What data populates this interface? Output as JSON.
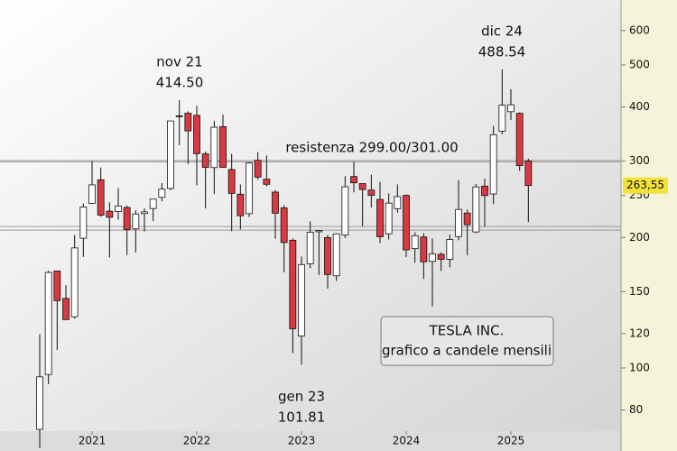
{
  "chart_data": {
    "type": "candlestick",
    "categories": [
      null,
      null,
      null,
      null,
      null,
      null,
      "2021",
      null,
      null,
      null,
      null,
      null,
      null,
      null,
      null,
      null,
      null,
      null,
      "2022",
      null,
      null,
      null,
      null,
      null,
      null,
      null,
      null,
      null,
      null,
      null,
      "2023",
      null,
      null,
      null,
      null,
      null,
      null,
      null,
      null,
      null,
      null,
      null,
      "2024",
      null,
      null,
      null,
      null,
      null,
      null,
      null,
      null,
      null,
      null,
      null,
      "2025",
      null,
      null
    ],
    "open": [
      72.2,
      96.6,
      167.4,
      144.7,
      131.3,
      199.2,
      239.8,
      271.7,
      230.0,
      229.5,
      234.6,
      209.3,
      227.0,
      233.3,
      247.5,
      259.5,
      381.7,
      386.9,
      382.6,
      311.7,
      289.9,
      360.4,
      286.9,
      251.7,
      227.0,
      301.3,
      272.6,
      254.5,
      234.1,
      197.1,
      118.5,
      173.9,
      206.2,
      199.9,
      163.2,
      202.6,
      276.5,
      266.3,
      257.3,
      244.8,
      204.0,
      233.1,
      250.1,
      188.5,
      200.5,
      176.2,
      182.9,
      178.1,
      201.0,
      227.7,
      206.0,
      262.7,
      252.0,
      351.8,
      390.1,
      386.7,
      300.3
    ],
    "high": [
      119.7,
      167.5,
      167.5,
      155.3,
      202.6,
      239.6,
      300.1,
      290.1,
      241.1,
      260.3,
      237.0,
      231.0,
      233.3,
      245.4,
      266.9,
      371.7,
      414.5,
      390.9,
      402.7,
      315.7,
      371.6,
      384.3,
      311.9,
      265.0,
      298.3,
      314.7,
      309.1,
      257.5,
      237.4,
      198.9,
      180.7,
      217.7,
      207.8,
      202.7,
      204.5,
      277.0,
      299.3,
      266.5,
      279.0,
      268.9,
      252.8,
      265.1,
      251.3,
      205.6,
      204.5,
      198.9,
      184.8,
      203.2,
      271.0,
      232.1,
      265.9,
      273.5,
      361.9,
      488.54,
      439.7,
      388.5,
      303.9
    ],
    "low": [
      65.4,
      91.8,
      110.0,
      135.0,
      130.0,
      180.4,
      239.1,
      223.3,
      179.8,
      219.8,
      182.3,
      184.5,
      206.5,
      218.1,
      242.3,
      256.9,
      326.7,
      295.4,
      264.0,
      233.3,
      252.0,
      290.0,
      206.9,
      208.7,
      222.9,
      271.8,
      262.5,
      198.6,
      166.2,
      108.2,
      101.81,
      169.9,
      163.9,
      152.4,
      158.8,
      199.4,
      254.1,
      212.4,
      234.6,
      194.1,
      197.9,
      228.2,
      180.1,
      175.0,
      160.5,
      138.8,
      167.4,
      170.7,
      197.1,
      182.0,
      204.8,
      212.1,
      238.9,
      346.0,
      373.0,
      284.8,
      217.0
    ],
    "close": [
      95.4,
      166.1,
      143.0,
      129.3,
      189.2,
      235.2,
      264.5,
      225.2,
      222.6,
      236.5,
      208.4,
      226.6,
      229.1,
      245.2,
      258.5,
      371.3,
      381.6,
      352.3,
      312.2,
      290.1,
      359.2,
      290.3,
      252.8,
      224.5,
      297.1,
      275.6,
      265.3,
      227.5,
      194.7,
      123.2,
      173.2,
      205.7,
      207.5,
      164.3,
      203.9,
      261.8,
      267.4,
      258.1,
      250.2,
      200.8,
      240.1,
      248.5,
      187.3,
      201.9,
      175.8,
      183.3,
      178.1,
      197.9,
      232.1,
      214.1,
      261.6,
      249.9,
      345.2,
      403.8,
      404.6,
      293.0,
      263.55
    ],
    "up_color": "#ffffff",
    "down_color": "#d93a3f",
    "log_scale": true,
    "ylim": [
      71.5,
      706
    ],
    "yticks": [
      80,
      100,
      120,
      150,
      200,
      250,
      300,
      400,
      500,
      600
    ],
    "resistance": {
      "label": "resistenza 299.00/301.00",
      "values": [
        299,
        301
      ]
    },
    "support_lines": [
      208,
      212
    ],
    "last_price": {
      "value": 263.55,
      "label": "263,55"
    },
    "annotations": [
      {
        "text": "nov 21",
        "value": 414.5,
        "label": "414.50"
      },
      {
        "text": "dic 24",
        "value": 488.54,
        "label": "488.54"
      },
      {
        "text": "gen 23",
        "value": 101.81,
        "label": "101.81"
      }
    ],
    "box": {
      "title": "TESLA INC.",
      "subtitle": "grafico a candele mensili"
    }
  }
}
